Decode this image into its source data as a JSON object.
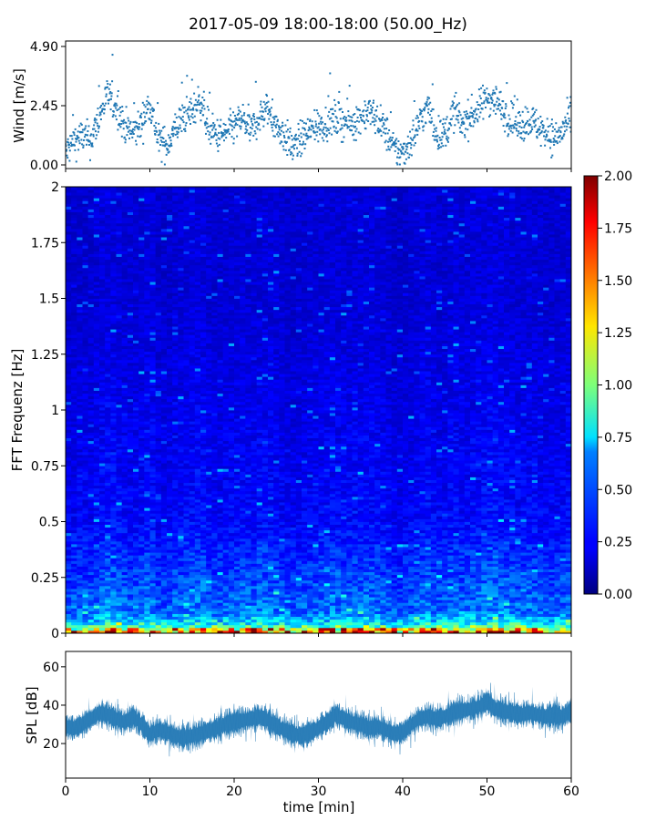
{
  "figure": {
    "title": "2017-05-09 18:00-18:00 (50.00_Hz)"
  },
  "chart_data": [
    {
      "type": "scatter",
      "panel": "wind",
      "ylabel": "Wind [m/s]",
      "xlim": [
        0,
        60
      ],
      "ylim": [
        0.0,
        4.9
      ],
      "yticks": [
        "0.00",
        "2.45",
        "4.90"
      ],
      "marker_color": "#1f77b4",
      "x": [
        0,
        1,
        2,
        3,
        4,
        5,
        6,
        7,
        8,
        9,
        10,
        11,
        12,
        13,
        14,
        15,
        16,
        17,
        18,
        19,
        20,
        21,
        22,
        23,
        24,
        25,
        26,
        27,
        28,
        29,
        30,
        31,
        32,
        33,
        34,
        35,
        36,
        37,
        38,
        39,
        40,
        41,
        42,
        43,
        44,
        45,
        46,
        47,
        48,
        49,
        50,
        51,
        52,
        53,
        54,
        55,
        56,
        57,
        58,
        59,
        60
      ],
      "y": [
        0.5,
        1.0,
        1.2,
        1.0,
        2.0,
        2.9,
        2.4,
        1.6,
        1.3,
        1.7,
        2.6,
        1.0,
        0.8,
        1.5,
        2.0,
        2.2,
        2.7,
        1.5,
        1.2,
        1.3,
        1.6,
        1.9,
        1.4,
        2.0,
        2.3,
        1.6,
        1.2,
        0.7,
        1.1,
        1.4,
        1.6,
        1.8,
        1.9,
        1.8,
        1.7,
        2.0,
        2.2,
        1.9,
        1.4,
        0.6,
        0.5,
        1.0,
        1.8,
        2.4,
        1.3,
        1.2,
        2.2,
        1.7,
        2.0,
        2.3,
        2.8,
        2.7,
        2.2,
        1.8,
        1.6,
        1.9,
        1.6,
        1.3,
        1.1,
        1.4,
        2.0
      ]
    },
    {
      "type": "heatmap",
      "panel": "spectrogram",
      "ylabel": "FFT Frequenz [Hz]",
      "xlim": [
        0,
        60
      ],
      "ylim": [
        0,
        2
      ],
      "yticks": [
        "0",
        "0.25",
        "0.5",
        "0.75",
        "1",
        "1.25",
        "1.5",
        "1.75",
        "2"
      ],
      "colormap": "jet",
      "clim": [
        0.0,
        2.0
      ],
      "colorbar_ticks": [
        "0.00",
        "0.25",
        "0.50",
        "0.75",
        "1.00",
        "1.25",
        "1.50",
        "1.75",
        "2.00"
      ],
      "description_values": {
        "freq_bands_hz": [
          0.0,
          0.025,
          0.05,
          0.1,
          0.25,
          0.5,
          1.0,
          1.5,
          2.0
        ],
        "typical_level": [
          1.8,
          1.2,
          0.8,
          0.55,
          0.45,
          0.3,
          0.25,
          0.2,
          0.2
        ]
      }
    },
    {
      "type": "line",
      "panel": "spl",
      "ylabel": "SPL [dB]",
      "xlabel": "time [min]",
      "xlim": [
        0,
        60
      ],
      "ylim": [
        2,
        68
      ],
      "yticks": [
        "20",
        "40",
        "60"
      ],
      "xticks": [
        "0",
        "10",
        "20",
        "30",
        "40",
        "50",
        "60"
      ],
      "line_color": "#1f77b4",
      "x": [
        0,
        1,
        2,
        3,
        4,
        5,
        6,
        7,
        8,
        9,
        10,
        11,
        12,
        13,
        14,
        15,
        16,
        17,
        18,
        19,
        20,
        21,
        22,
        23,
        24,
        25,
        26,
        27,
        28,
        29,
        30,
        31,
        32,
        33,
        34,
        35,
        36,
        37,
        38,
        39,
        40,
        41,
        42,
        43,
        44,
        45,
        46,
        47,
        48,
        49,
        50,
        51,
        52,
        53,
        54,
        55,
        56,
        57,
        58,
        59,
        60
      ],
      "y": [
        29,
        28,
        30,
        33,
        36,
        35,
        33,
        31,
        34,
        30,
        25,
        27,
        26,
        24,
        23,
        24,
        25,
        27,
        28,
        30,
        31,
        32,
        33,
        34,
        32,
        29,
        27,
        25,
        24,
        26,
        28,
        31,
        35,
        33,
        31,
        30,
        28,
        29,
        27,
        25,
        26,
        30,
        33,
        34,
        33,
        34,
        36,
        37,
        38,
        39,
        42,
        38,
        37,
        36,
        35,
        36,
        35,
        34,
        35,
        34,
        37
      ]
    }
  ]
}
